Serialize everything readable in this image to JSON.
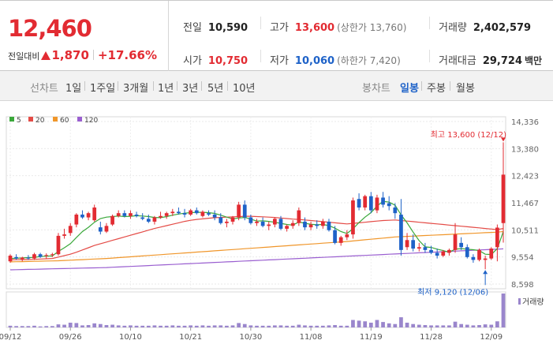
{
  "quote": {
    "price": "12,460",
    "change_label": "전일대비",
    "change_amount": "1,870",
    "change_percent": "+17.66%",
    "prev_close_label": "전일",
    "prev_close": "10,590",
    "high_label": "고가",
    "high": "13,600",
    "upper_limit_text": "(상한가 13,760)",
    "volume_label": "거래량",
    "volume": "2,402,579",
    "open_label": "시가",
    "open": "10,750",
    "low_label": "저가",
    "low": "10,060",
    "lower_limit_text": "(하한가 7,420)",
    "trade_value_label": "거래대금",
    "trade_value": "29,724",
    "trade_value_unit": "백만"
  },
  "tabs": {
    "line_chart": "선차트",
    "periods": [
      "1일",
      "1주일",
      "3개월",
      "1년",
      "3년",
      "5년",
      "10년"
    ],
    "candle_chart": "봉차트",
    "candle_periods": [
      "일봉",
      "주봉",
      "월봉"
    ],
    "active_candle_period": "일봉"
  },
  "colors": {
    "up": "#e22b32",
    "down": "#1e62c8",
    "ma5": "#3aa83a",
    "ma20": "#e44b46",
    "ma60": "#f0962a",
    "ma120": "#9a5fd0",
    "volume": "#9a86cc"
  },
  "chart_data": {
    "type": "candlestick",
    "legend": [
      {
        "name": "5",
        "color": "#3aa83a"
      },
      {
        "name": "20",
        "color": "#e44b46"
      },
      {
        "name": "60",
        "color": "#f0962a"
      },
      {
        "name": "120",
        "color": "#9a5fd0"
      }
    ],
    "y_ticks": [
      14336,
      13380,
      12423,
      11467,
      10511,
      9554,
      8598
    ],
    "ylim": [
      8598,
      14336
    ],
    "x_ticks": [
      "09/12",
      "09/26",
      "10/10",
      "10/21",
      "10/30",
      "11/08",
      "11/19",
      "11/28",
      "12/09"
    ],
    "x_tick_index": [
      0,
      10,
      20,
      30,
      40,
      50,
      60,
      70,
      80
    ],
    "high_annotation": "최고 13,600 (12/12)",
    "low_annotation": "최저 9,120 (12/06)",
    "high_index": 82,
    "high_value": 13600,
    "low_index": 79,
    "low_value": 9120,
    "volume_label": "거래량",
    "candles": [
      [
        9400,
        9650,
        9350,
        9600
      ],
      [
        9550,
        9650,
        9450,
        9500
      ],
      [
        9480,
        9560,
        9400,
        9530
      ],
      [
        9530,
        9620,
        9450,
        9500
      ],
      [
        9500,
        9700,
        9450,
        9650
      ],
      [
        9650,
        9700,
        9520,
        9560
      ],
      [
        9600,
        9680,
        9500,
        9620
      ],
      [
        9620,
        9700,
        9550,
        9650
      ],
      [
        9650,
        10400,
        9600,
        10300
      ],
      [
        10300,
        10550,
        10200,
        10350
      ],
      [
        10400,
        10750,
        10300,
        10650
      ],
      [
        10700,
        11100,
        10600,
        11050
      ],
      [
        11050,
        11200,
        10900,
        10950
      ],
      [
        10950,
        11150,
        10850,
        11100
      ],
      [
        10850,
        11400,
        10800,
        11300
      ],
      [
        10600,
        10800,
        10350,
        10450
      ],
      [
        10450,
        10750,
        10400,
        10650
      ],
      [
        10700,
        11050,
        10650,
        11000
      ],
      [
        11000,
        11200,
        10950,
        11100
      ],
      [
        11100,
        11200,
        10950,
        11000
      ],
      [
        11000,
        11200,
        10900,
        11100
      ],
      [
        11050,
        11150,
        10950,
        11000
      ],
      [
        10950,
        11100,
        10850,
        10900
      ],
      [
        10900,
        11050,
        10750,
        10800
      ],
      [
        10800,
        11000,
        10700,
        10950
      ],
      [
        10950,
        11150,
        10900,
        11000
      ],
      [
        11000,
        11150,
        10900,
        11100
      ],
      [
        11100,
        11250,
        11000,
        11150
      ],
      [
        11150,
        11300,
        11050,
        11100
      ],
      [
        11100,
        11250,
        10950,
        11050
      ],
      [
        11050,
        11250,
        11000,
        11200
      ],
      [
        11200,
        11300,
        11050,
        11100
      ],
      [
        11000,
        11200,
        10950,
        11150
      ],
      [
        11100,
        11200,
        11000,
        11050
      ],
      [
        11050,
        11200,
        10850,
        10950
      ],
      [
        10950,
        11100,
        10700,
        10750
      ],
      [
        10750,
        10900,
        10600,
        10800
      ],
      [
        10800,
        11000,
        10700,
        10950
      ],
      [
        10950,
        11500,
        10850,
        11400
      ],
      [
        11400,
        11550,
        10850,
        10950
      ],
      [
        10950,
        11050,
        10700,
        10750
      ],
      [
        10750,
        10900,
        10650,
        10800
      ],
      [
        10800,
        10950,
        10600,
        10650
      ],
      [
        10650,
        10800,
        10500,
        10700
      ],
      [
        10700,
        10950,
        10600,
        10900
      ],
      [
        10900,
        11000,
        10500,
        10550
      ],
      [
        10550,
        10700,
        10450,
        10650
      ],
      [
        10650,
        10850,
        10550,
        10750
      ],
      [
        10750,
        11300,
        10650,
        11200
      ],
      [
        10800,
        10950,
        10500,
        10600
      ],
      [
        10600,
        10800,
        10500,
        10700
      ],
      [
        10700,
        10850,
        10550,
        10650
      ],
      [
        10650,
        10900,
        10550,
        10800
      ],
      [
        10800,
        10900,
        10450,
        10500
      ],
      [
        10500,
        10650,
        10000,
        10050
      ],
      [
        10050,
        10300,
        9950,
        10250
      ],
      [
        10250,
        10500,
        10150,
        10350
      ],
      [
        10350,
        11650,
        10200,
        11550
      ],
      [
        11600,
        11800,
        11200,
        11300
      ],
      [
        11300,
        11750,
        11200,
        11700
      ],
      [
        11700,
        11850,
        11100,
        11200
      ],
      [
        11200,
        11750,
        11100,
        11650
      ],
      [
        11650,
        11850,
        11300,
        11400
      ],
      [
        11450,
        11700,
        11200,
        11350
      ],
      [
        11300,
        11450,
        10900,
        11100
      ],
      [
        11050,
        11600,
        9600,
        9800
      ],
      [
        9900,
        10400,
        9800,
        10150
      ],
      [
        10150,
        10350,
        9750,
        9850
      ],
      [
        9850,
        10050,
        9750,
        9900
      ],
      [
        9900,
        10050,
        9700,
        9800
      ],
      [
        9800,
        9950,
        9650,
        9700
      ],
      [
        9700,
        9850,
        9500,
        9600
      ],
      [
        9600,
        9800,
        9550,
        9750
      ],
      [
        9700,
        9850,
        9600,
        9800
      ],
      [
        9800,
        10750,
        9700,
        10350
      ],
      [
        10050,
        10250,
        9800,
        9900
      ],
      [
        9900,
        10000,
        9500,
        9550
      ],
      [
        9550,
        9650,
        9350,
        9450
      ],
      [
        9450,
        9850,
        9400,
        9800
      ],
      [
        9450,
        9600,
        9120,
        9500
      ],
      [
        9500,
        9900,
        9450,
        9850
      ],
      [
        9900,
        10700,
        9400,
        10590
      ],
      [
        10750,
        13600,
        10060,
        12460
      ]
    ],
    "ma5": [
      9500,
      9510,
      9520,
      9530,
      9540,
      9570,
      9580,
      9590,
      9750,
      9880,
      10020,
      10240,
      10450,
      10600,
      10780,
      10910,
      10960,
      10980,
      11000,
      10980,
      10990,
      11010,
      11000,
      10980,
      10950,
      10940,
      10980,
      11030,
      11070,
      11100,
      11120,
      11130,
      11130,
      11120,
      11090,
      11030,
      10960,
      10900,
      10930,
      10950,
      10890,
      10820,
      10830,
      10810,
      10780,
      10740,
      10700,
      10680,
      10790,
      10740,
      10710,
      10690,
      10700,
      10660,
      10570,
      10450,
      10380,
      10550,
      10770,
      10960,
      11120,
      11350,
      11520,
      11490,
      11380,
      11040,
      10760,
      10430,
      10130,
      9910,
      9890,
      9830,
      9780,
      9720,
      9830,
      9850,
      9830,
      9810,
      9780,
      9650,
      9640,
      9850,
      10450
    ],
    "ma20": [
      9450,
      9455,
      9460,
      9465,
      9470,
      9480,
      9490,
      9500,
      9550,
      9600,
      9650,
      9720,
      9800,
      9880,
      9960,
      10020,
      10080,
      10140,
      10200,
      10260,
      10320,
      10380,
      10440,
      10500,
      10560,
      10610,
      10660,
      10710,
      10760,
      10810,
      10850,
      10880,
      10900,
      10920,
      10940,
      10950,
      10960,
      10970,
      10980,
      10990,
      10990,
      10980,
      10970,
      10960,
      10950,
      10930,
      10910,
      10890,
      10880,
      10860,
      10840,
      10820,
      10800,
      10780,
      10760,
      10740,
      10720,
      10740,
      10760,
      10780,
      10800,
      10820,
      10840,
      10850,
      10860,
      10840,
      10820,
      10800,
      10780,
      10760,
      10740,
      10720,
      10700,
      10680,
      10660,
      10640,
      10620,
      10600,
      10580,
      10560,
      10540,
      10520,
      10560
    ],
    "ma60": [
      9380,
      9385,
      9390,
      9395,
      9400,
      9405,
      9410,
      9415,
      9420,
      9430,
      9440,
      9450,
      9460,
      9470,
      9480,
      9490,
      9500,
      9515,
      9530,
      9545,
      9560,
      9575,
      9590,
      9605,
      9620,
      9635,
      9650,
      9665,
      9680,
      9695,
      9710,
      9725,
      9740,
      9755,
      9770,
      9785,
      9800,
      9815,
      9830,
      9845,
      9860,
      9875,
      9890,
      9905,
      9920,
      9935,
      9950,
      9965,
      9980,
      9995,
      10010,
      10025,
      10040,
      10055,
      10070,
      10085,
      10100,
      10120,
      10140,
      10160,
      10180,
      10200,
      10220,
      10240,
      10260,
      10270,
      10280,
      10290,
      10300,
      10310,
      10320,
      10330,
      10340,
      10350,
      10360,
      10370,
      10380,
      10390,
      10400,
      10410,
      10420,
      10430,
      10450
    ],
    "ma120": [
      9100,
      9105,
      9110,
      9115,
      9120,
      9125,
      9130,
      9135,
      9140,
      9145,
      9150,
      9155,
      9160,
      9165,
      9170,
      9175,
      9180,
      9190,
      9200,
      9210,
      9220,
      9230,
      9240,
      9250,
      9260,
      9270,
      9280,
      9290,
      9300,
      9310,
      9320,
      9330,
      9340,
      9350,
      9360,
      9370,
      9380,
      9390,
      9400,
      9410,
      9420,
      9430,
      9440,
      9450,
      9460,
      9470,
      9480,
      9490,
      9500,
      9510,
      9520,
      9530,
      9540,
      9550,
      9560,
      9570,
      9580,
      9590,
      9600,
      9610,
      9620,
      9630,
      9640,
      9650,
      9660,
      9670,
      9680,
      9690,
      9700,
      9710,
      9720,
      9730,
      9740,
      9750,
      9760,
      9770,
      9780,
      9790,
      9800,
      9810,
      9820,
      9830,
      9840
    ],
    "volume": [
      0.05,
      0.04,
      0.04,
      0.04,
      0.05,
      0.03,
      0.04,
      0.04,
      0.09,
      0.08,
      0.14,
      0.13,
      0.06,
      0.07,
      0.12,
      0.1,
      0.07,
      0.08,
      0.06,
      0.05,
      0.06,
      0.05,
      0.05,
      0.05,
      0.06,
      0.05,
      0.05,
      0.06,
      0.05,
      0.05,
      0.06,
      0.05,
      0.06,
      0.05,
      0.06,
      0.06,
      0.05,
      0.06,
      0.13,
      0.1,
      0.06,
      0.05,
      0.05,
      0.05,
      0.06,
      0.06,
      0.05,
      0.05,
      0.08,
      0.06,
      0.05,
      0.05,
      0.05,
      0.06,
      0.07,
      0.05,
      0.05,
      0.22,
      0.2,
      0.18,
      0.14,
      0.22,
      0.16,
      0.12,
      0.1,
      0.3,
      0.14,
      0.1,
      0.08,
      0.07,
      0.06,
      0.06,
      0.06,
      0.06,
      0.17,
      0.1,
      0.08,
      0.06,
      0.07,
      0.09,
      0.08,
      0.18,
      1.0
    ]
  }
}
